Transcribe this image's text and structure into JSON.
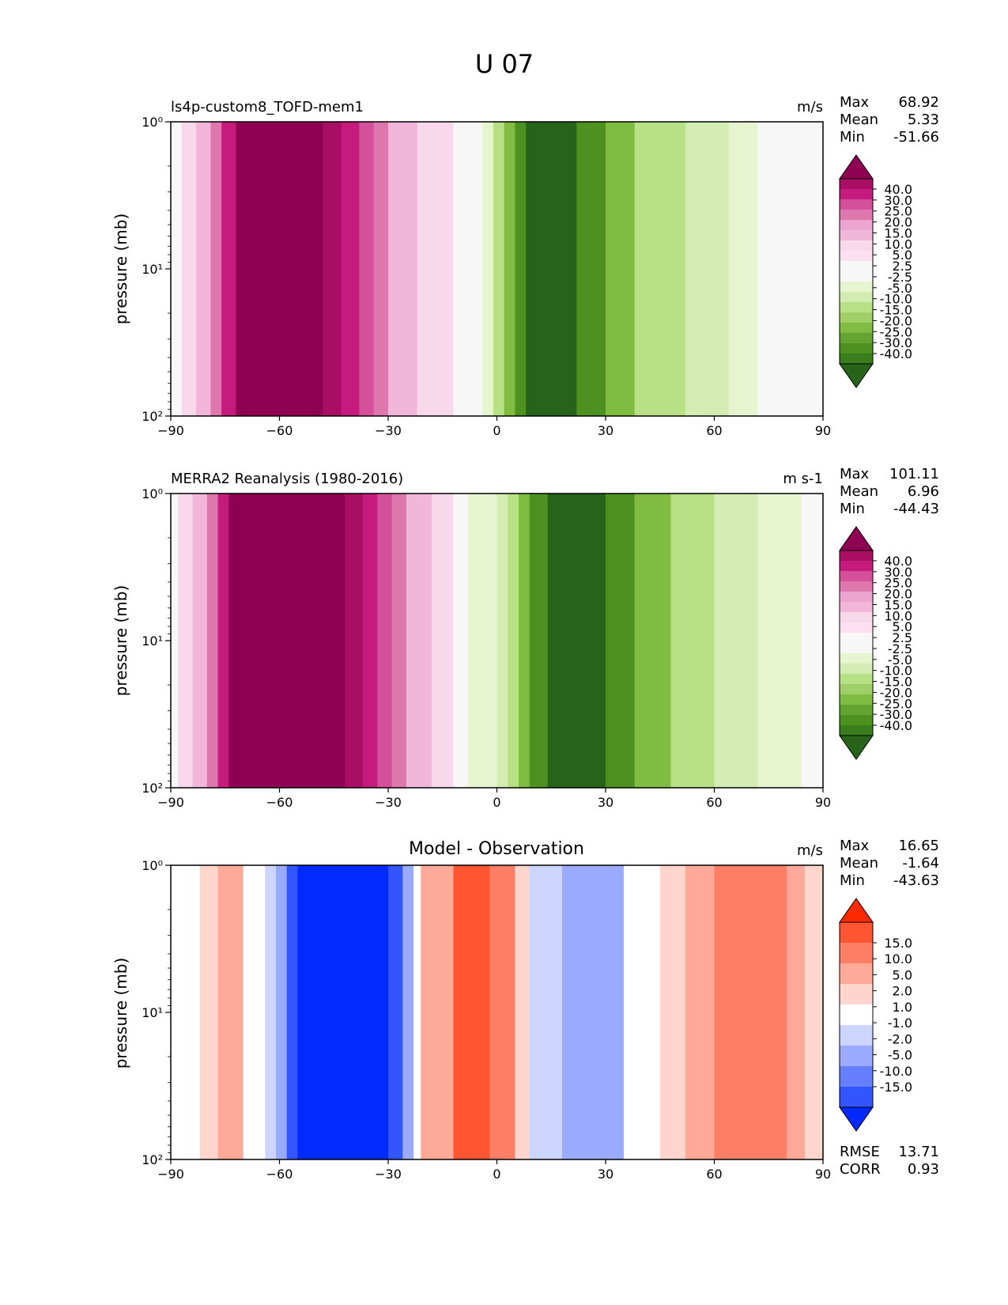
{
  "figure_title": "U 07",
  "chart_data": [
    {
      "type": "heatmap",
      "title": "ls4p-custom8_TOFD-mem1",
      "units": "m/s",
      "ylabel": "pressure (mb)",
      "xlabel": "",
      "xlim": [
        -90,
        90
      ],
      "x_ticks": [
        "−90",
        "−60",
        "−30",
        "0",
        "30",
        "60",
        "90"
      ],
      "ylim": [
        100,
        1
      ],
      "y_scale": "log",
      "y_ticks": [
        "10⁰",
        "10¹",
        "10²"
      ],
      "stats": {
        "max_label": "Max",
        "max": "68.92",
        "mean_label": "Mean",
        "mean": "5.33",
        "min_label": "Min",
        "min": "-51.66"
      },
      "colorbar": {
        "levels": [
          "40.0",
          "30.0",
          "25.0",
          "20.0",
          "15.0",
          "10.0",
          "5.0",
          "2.5",
          "-2.5",
          "-5.0",
          "-10.0",
          "-15.0",
          "-20.0",
          "-25.0",
          "-30.0",
          "-40.0"
        ],
        "colors": [
          "#8e0152",
          "#a90e65",
          "#c51b7d",
          "#d5509a",
          "#de77ae",
          "#eba5ce",
          "#f1b6da",
          "#f8d8eb",
          "#fde0ef",
          "#f7f7f7",
          "#f7f7f7",
          "#e6f5d0",
          "#d3ecb3",
          "#b8e186",
          "#9fcf67",
          "#7fbc41",
          "#62a42f",
          "#4d9221",
          "#397d1d",
          "#276419"
        ]
      },
      "zones": [
        {
          "x": -90,
          "fill": "#f7f7f7"
        },
        {
          "x": -87,
          "fill": "#f8d8eb"
        },
        {
          "x": -83,
          "fill": "#f1b6da"
        },
        {
          "x": -79,
          "fill": "#de77ae"
        },
        {
          "x": -76,
          "fill": "#c51b7d"
        },
        {
          "x": -72,
          "fill": "#8e0152"
        },
        {
          "x": -48,
          "fill": "#a90e65"
        },
        {
          "x": -43,
          "fill": "#c51b7d"
        },
        {
          "x": -38,
          "fill": "#d5509a"
        },
        {
          "x": -34,
          "fill": "#de77ae"
        },
        {
          "x": -30,
          "fill": "#f1b6da"
        },
        {
          "x": -22,
          "fill": "#f8d8eb"
        },
        {
          "x": -12,
          "fill": "#f7f7f7"
        },
        {
          "x": -4,
          "fill": "#e6f5d0"
        },
        {
          "x": -1,
          "fill": "#b8e186"
        },
        {
          "x": 2,
          "fill": "#7fbc41"
        },
        {
          "x": 5,
          "fill": "#4d9221"
        },
        {
          "x": 8,
          "fill": "#276419"
        },
        {
          "x": 22,
          "fill": "#4d9221"
        },
        {
          "x": 30,
          "fill": "#7fbc41"
        },
        {
          "x": 38,
          "fill": "#b8e186"
        },
        {
          "x": 52,
          "fill": "#d3ecb3"
        },
        {
          "x": 64,
          "fill": "#e6f5d0"
        },
        {
          "x": 72,
          "fill": "#f7f7f7"
        }
      ]
    },
    {
      "type": "heatmap",
      "title": "MERRA2 Reanalysis (1980-2016)",
      "units": "m s-1",
      "ylabel": "pressure (mb)",
      "xlabel": "",
      "xlim": [
        -90,
        90
      ],
      "x_ticks": [
        "−90",
        "−60",
        "−30",
        "0",
        "30",
        "60",
        "90"
      ],
      "ylim": [
        100,
        1
      ],
      "y_scale": "log",
      "y_ticks": [
        "10⁰",
        "10¹",
        "10²"
      ],
      "stats": {
        "max_label": "Max",
        "max": "101.11",
        "mean_label": "Mean",
        "mean": "6.96",
        "min_label": "Min",
        "min": "-44.43"
      },
      "colorbar": {
        "levels": [
          "40.0",
          "30.0",
          "25.0",
          "20.0",
          "15.0",
          "10.0",
          "5.0",
          "2.5",
          "-2.5",
          "-5.0",
          "-10.0",
          "-15.0",
          "-20.0",
          "-25.0",
          "-30.0",
          "-40.0"
        ],
        "colors": [
          "#8e0152",
          "#a90e65",
          "#c51b7d",
          "#d5509a",
          "#de77ae",
          "#eba5ce",
          "#f1b6da",
          "#f8d8eb",
          "#fde0ef",
          "#f7f7f7",
          "#f7f7f7",
          "#e6f5d0",
          "#d3ecb3",
          "#b8e186",
          "#9fcf67",
          "#7fbc41",
          "#62a42f",
          "#4d9221",
          "#397d1d",
          "#276419"
        ]
      },
      "zones": [
        {
          "x": -90,
          "fill": "#f7f7f7"
        },
        {
          "x": -88,
          "fill": "#f8d8eb"
        },
        {
          "x": -84,
          "fill": "#f1b6da"
        },
        {
          "x": -80,
          "fill": "#de77ae"
        },
        {
          "x": -77,
          "fill": "#c51b7d"
        },
        {
          "x": -74,
          "fill": "#8e0152"
        },
        {
          "x": -42,
          "fill": "#a90e65"
        },
        {
          "x": -37,
          "fill": "#c51b7d"
        },
        {
          "x": -33,
          "fill": "#d5509a"
        },
        {
          "x": -29,
          "fill": "#de77ae"
        },
        {
          "x": -25,
          "fill": "#f1b6da"
        },
        {
          "x": -18,
          "fill": "#f8d8eb"
        },
        {
          "x": -12,
          "fill": "#f7f7f7"
        },
        {
          "x": -8,
          "fill": "#e6f5d0"
        },
        {
          "x": 0,
          "fill": "#d3ecb3"
        },
        {
          "x": 3,
          "fill": "#b8e186"
        },
        {
          "x": 6,
          "fill": "#7fbc41"
        },
        {
          "x": 9,
          "fill": "#4d9221"
        },
        {
          "x": 14,
          "fill": "#276419"
        },
        {
          "x": 30,
          "fill": "#4d9221"
        },
        {
          "x": 38,
          "fill": "#7fbc41"
        },
        {
          "x": 48,
          "fill": "#b8e186"
        },
        {
          "x": 60,
          "fill": "#d3ecb3"
        },
        {
          "x": 72,
          "fill": "#e6f5d0"
        },
        {
          "x": 84,
          "fill": "#f7f7f7"
        }
      ]
    },
    {
      "type": "heatmap",
      "title": "Model - Observation",
      "units": "m/s",
      "ylabel": "pressure (mb)",
      "xlabel": "",
      "xlim": [
        -90,
        90
      ],
      "x_ticks": [
        "−90",
        "−60",
        "−30",
        "0",
        "30",
        "60",
        "90"
      ],
      "ylim": [
        100,
        1
      ],
      "y_scale": "log",
      "y_ticks": [
        "10⁰",
        "10¹",
        "10²"
      ],
      "stats": {
        "max_label": "Max",
        "max": "16.65",
        "mean_label": "Mean",
        "mean": "-1.64",
        "min_label": "Min",
        "min": "-43.63"
      },
      "extra_stats": {
        "rmse_label": "RMSE",
        "rmse": "13.71",
        "corr_label": "CORR",
        "corr": "0.93"
      },
      "colorbar": {
        "levels": [
          "15.0",
          "10.0",
          "5.0",
          "2.0",
          "1.0",
          "-1.0",
          "-2.0",
          "-5.0",
          "-10.0",
          "-15.0"
        ],
        "colors": [
          "#ff2a00",
          "#ff5533",
          "#ff7f66",
          "#ffaa99",
          "#ffd5cc",
          "#ffffff",
          "#ccd5ff",
          "#99aaff",
          "#667fff",
          "#3355ff",
          "#002aff"
        ]
      },
      "zones": [
        {
          "x": -90,
          "fill": "#ffffff"
        },
        {
          "x": -82,
          "fill": "#ffd5cc"
        },
        {
          "x": -77,
          "fill": "#ffaa99"
        },
        {
          "x": -70,
          "fill": "#ffffff"
        },
        {
          "x": -64,
          "fill": "#ccd5ff"
        },
        {
          "x": -61,
          "fill": "#99aaff"
        },
        {
          "x": -58,
          "fill": "#3355ff"
        },
        {
          "x": -55,
          "fill": "#002aff"
        },
        {
          "x": -30,
          "fill": "#3355ff"
        },
        {
          "x": -26,
          "fill": "#99aaff"
        },
        {
          "x": -23,
          "fill": "#ffffff"
        },
        {
          "x": -21,
          "fill": "#ffaa99"
        },
        {
          "x": -12,
          "fill": "#ff5533"
        },
        {
          "x": -2,
          "fill": "#ff7f66"
        },
        {
          "x": 5,
          "fill": "#ffd5cc"
        },
        {
          "x": 9,
          "fill": "#ccd5ff"
        },
        {
          "x": 18,
          "fill": "#99aaff"
        },
        {
          "x": 35,
          "fill": "#ffffff"
        },
        {
          "x": 45,
          "fill": "#ffd5cc"
        },
        {
          "x": 52,
          "fill": "#ffaa99"
        },
        {
          "x": 60,
          "fill": "#ff7f66"
        },
        {
          "x": 80,
          "fill": "#ffaa99"
        },
        {
          "x": 85,
          "fill": "#ffd5cc"
        }
      ]
    }
  ]
}
